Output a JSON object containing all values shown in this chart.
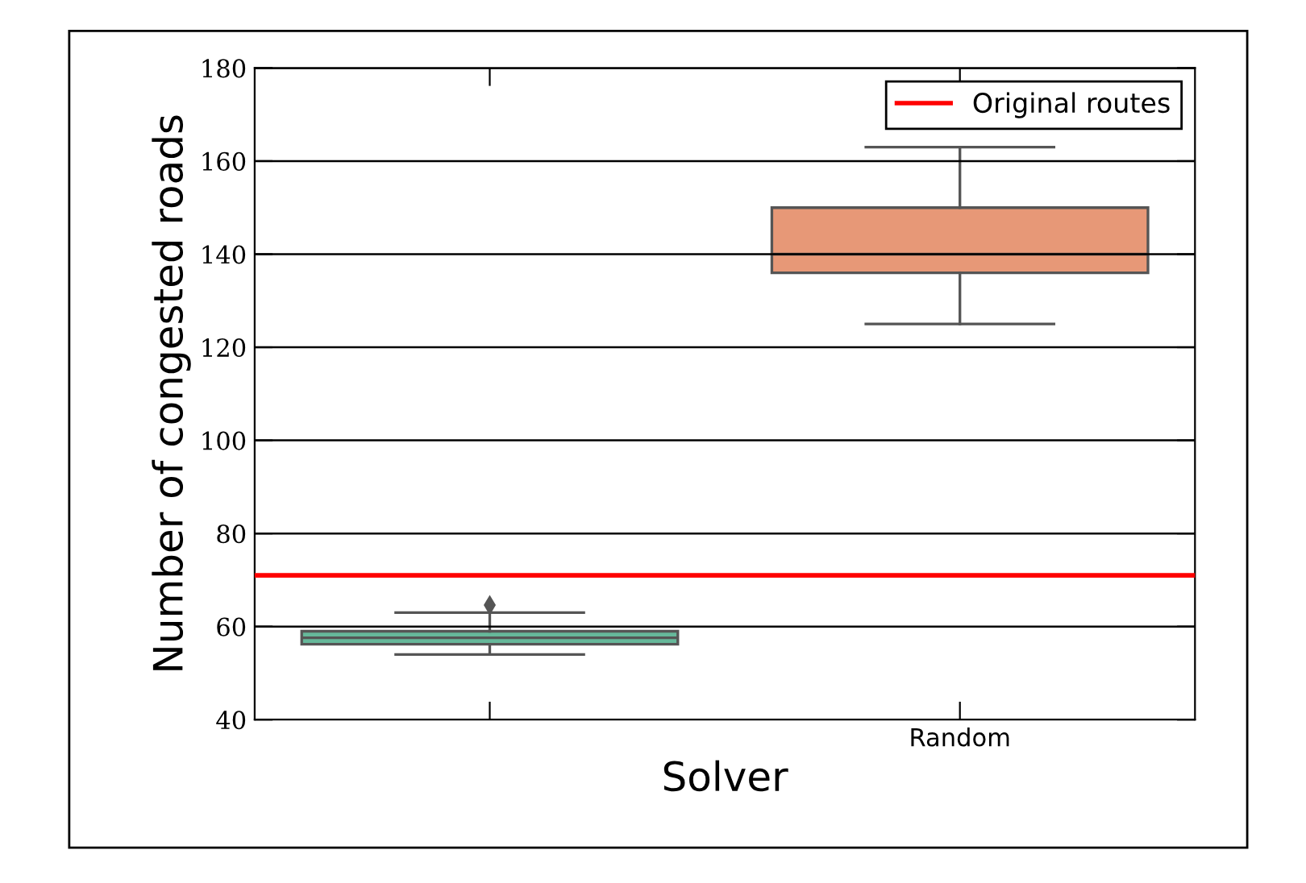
{
  "chart_data": {
    "type": "box",
    "xlabel": "Solver",
    "ylabel": "Number of congested roads",
    "categories": [
      null,
      "Random"
    ],
    "series": [
      {
        "colors": [
          "#66b89a",
          "#e79877"
        ],
        "boxes": [
          {
            "low": 54,
            "q1": 56.2,
            "median": 57.6,
            "q3": 59,
            "high": 63,
            "outliers": [
              64.6
            ]
          },
          {
            "low": 125,
            "q1": 136,
            "median": 140,
            "q3": 150,
            "high": 163
          }
        ]
      }
    ],
    "ylim": [
      40,
      180
    ],
    "yticks": [
      40,
      60,
      80,
      100,
      120,
      140,
      160,
      180
    ],
    "grid": "y",
    "legend": "top right",
    "ref_lines": [
      {
        "axis": "y",
        "value": 71,
        "label": "Original routes",
        "color": "#ff0000"
      }
    ]
  }
}
